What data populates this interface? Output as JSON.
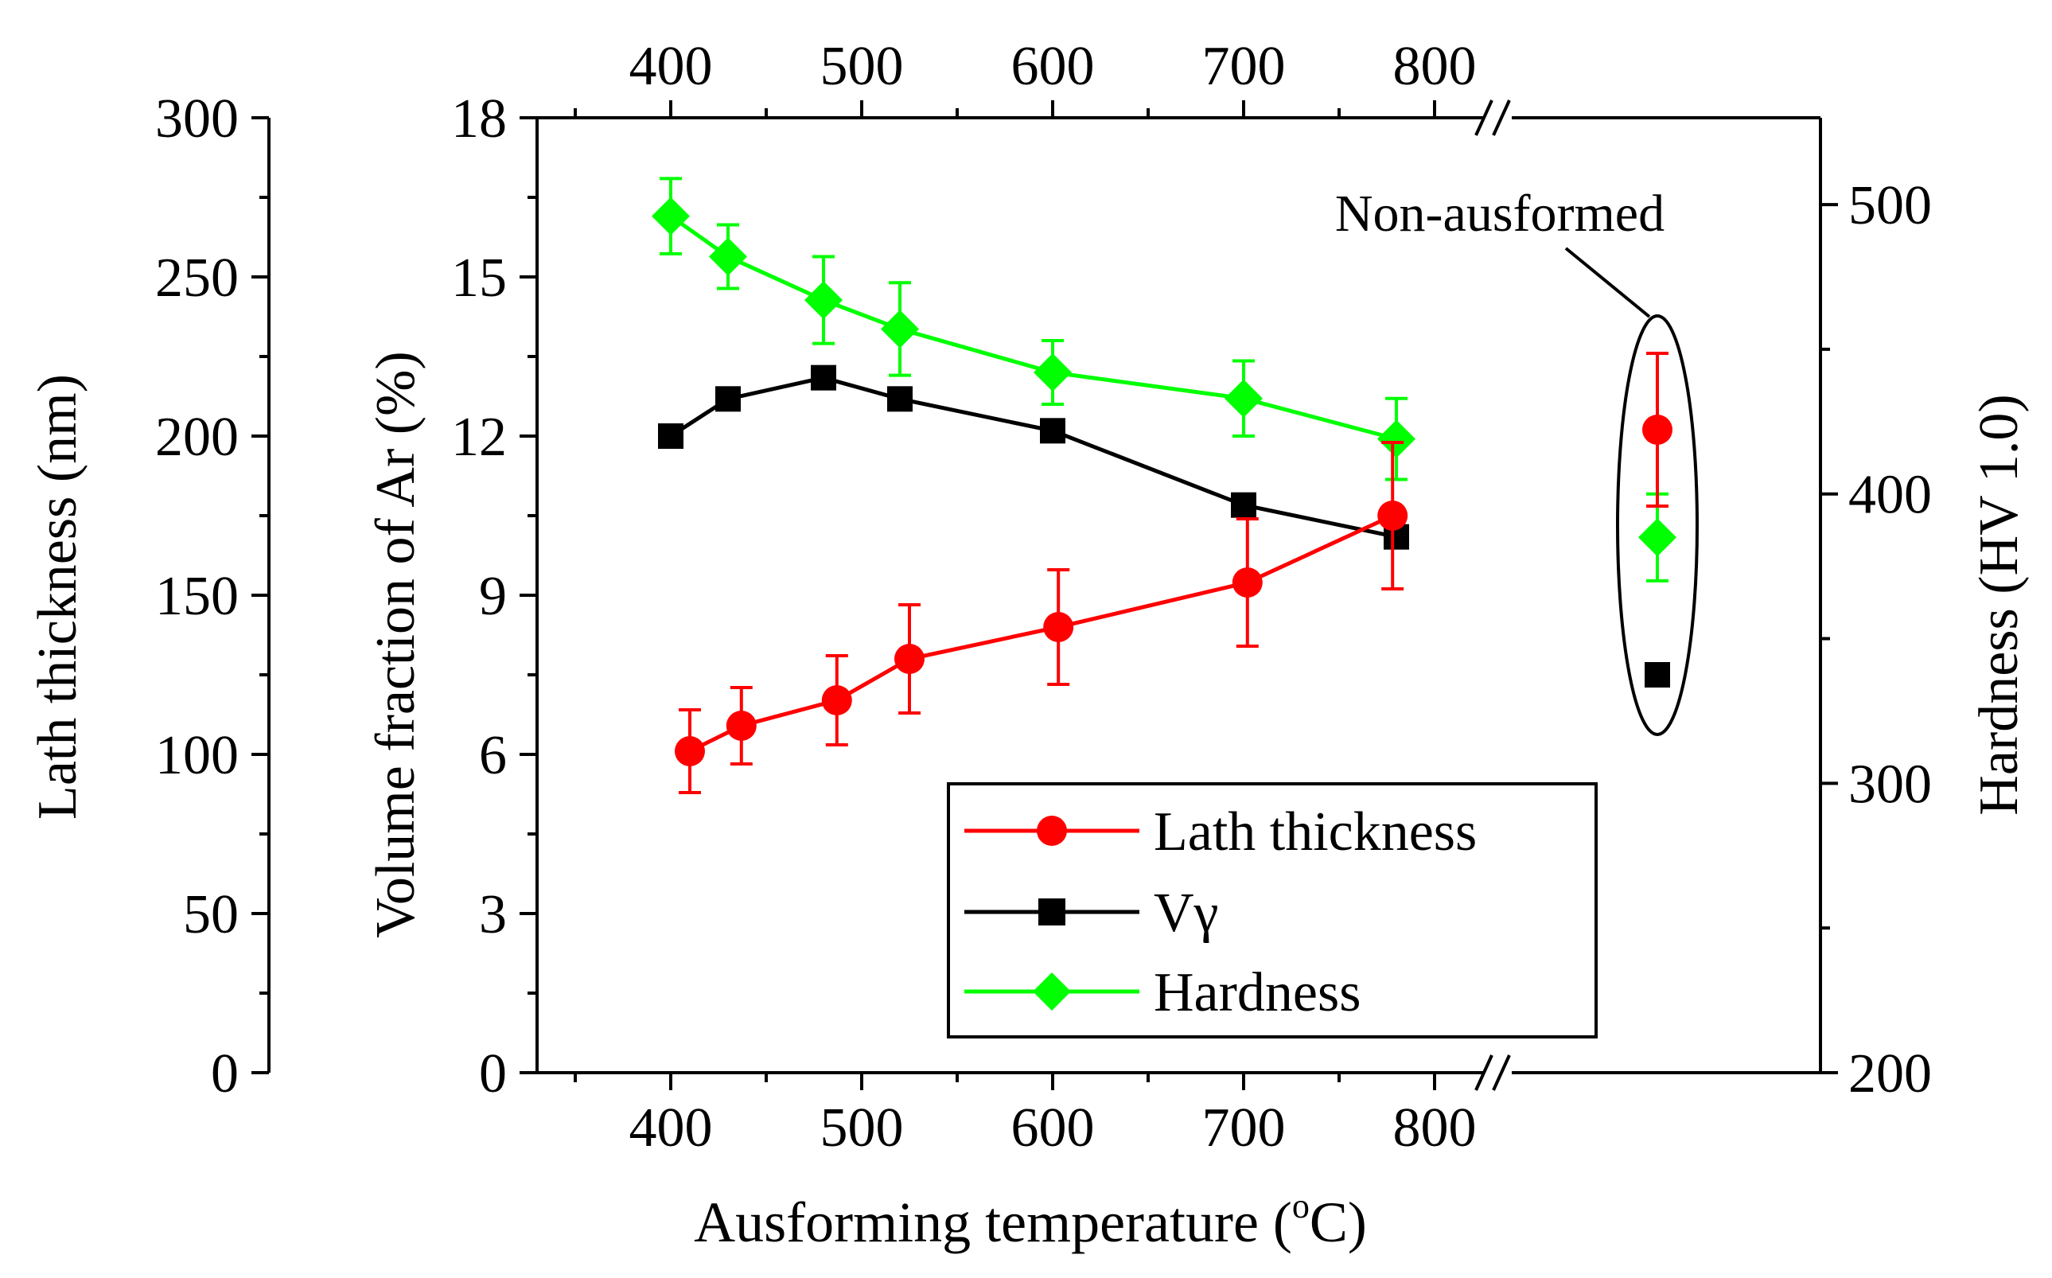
{
  "chart_data": {
    "type": "line",
    "xlabel": "Ausforming temperature (",
    "xlabel_sup": "o",
    "xlabel_tail": "C)",
    "x_ticks": [
      "400",
      "500",
      "600",
      "700",
      "800"
    ],
    "x_ticks_top": [
      "400",
      "500",
      "600",
      "700",
      "800"
    ],
    "xlim": [
      330,
      830
    ],
    "non_ausformed_label": "Non-ausformed",
    "axes": {
      "lath": {
        "label": "Lath thickness (nm)",
        "ylim": [
          0,
          300
        ],
        "ticks": [
          "0",
          "50",
          "100",
          "150",
          "200",
          "250",
          "300"
        ]
      },
      "volume": {
        "label": "Volume fraction of Ar (%)",
        "ylim": [
          0,
          18
        ],
        "ticks": [
          "0",
          "3",
          "6",
          "9",
          "12",
          "15",
          "18"
        ]
      },
      "hardness": {
        "label": "Hardness (HV 1.0)",
        "ylim": [
          200,
          530
        ],
        "ticks": [
          "200",
          "300",
          "400",
          "500"
        ]
      }
    },
    "legend_position": "bottom-right",
    "series": [
      {
        "name": "Lath thickness",
        "axis": "lath",
        "marker": "circle",
        "color": "#ff0000",
        "x": [
          410,
          437,
          487,
          525,
          603,
          702,
          778
        ],
        "values": [
          101,
          109,
          117,
          130,
          140,
          154,
          175
        ],
        "errors": [
          13,
          12,
          14,
          17,
          18,
          20,
          23
        ],
        "non_ausformed": {
          "value": 202,
          "error": 24
        }
      },
      {
        "name": "Vγ",
        "axis": "volume",
        "marker": "square",
        "color": "#000000",
        "x": [
          400,
          430,
          480,
          520,
          600,
          700,
          780
        ],
        "values": [
          12.0,
          12.7,
          13.1,
          12.7,
          12.1,
          10.7,
          10.1
        ],
        "non_ausformed": {
          "value": 7.5
        }
      },
      {
        "name": "Hardness",
        "axis": "hardness",
        "marker": "diamond",
        "color": "#00ff00",
        "x": [
          400,
          430,
          480,
          520,
          600,
          700,
          780
        ],
        "values": [
          496,
          482,
          467,
          457,
          442,
          433,
          419
        ],
        "errors": [
          13,
          11,
          15,
          16,
          11,
          13,
          14
        ],
        "non_ausformed": {
          "value": 385,
          "error": 15
        }
      }
    ]
  }
}
